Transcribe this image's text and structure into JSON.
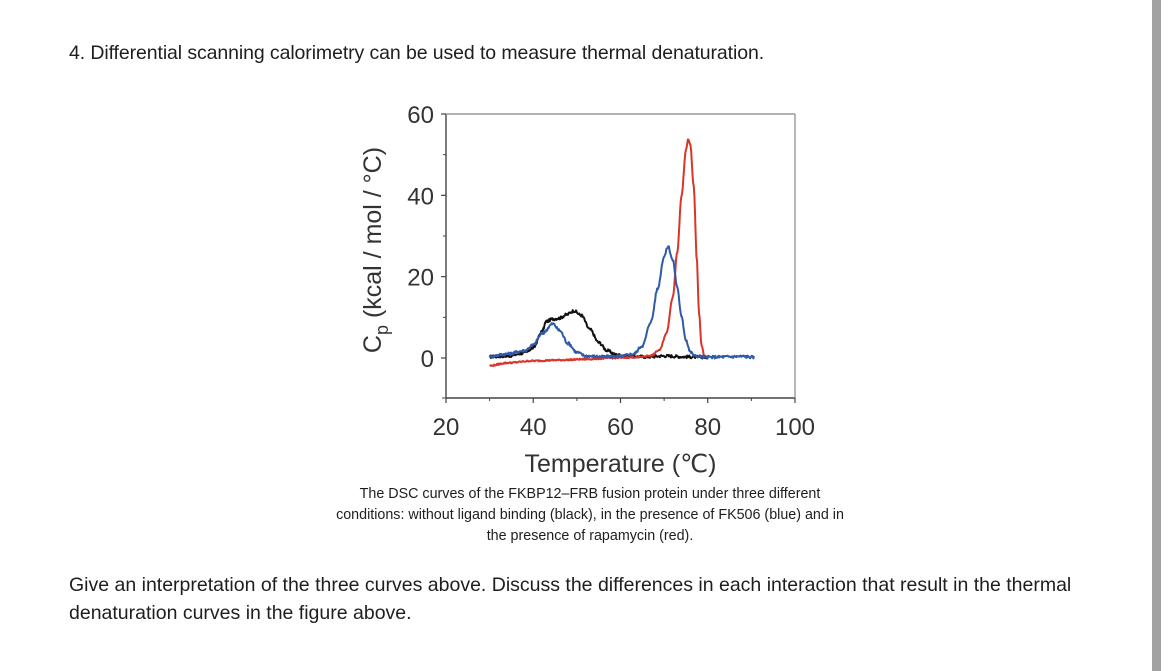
{
  "question": {
    "title": "4. Differential scanning calorimetry can be used to measure thermal denaturation.",
    "caption_lines": [
      "The DSC curves of the FKBP12–FRB fusion protein under three different",
      "conditions: without ligand binding (black), in the presence of FK506 (blue) and in",
      "the presence of rapamycin (red)."
    ],
    "prompt": "Give an interpretation of the three curves above. Discuss the differences in each interaction that result in the thermal denaturation curves in the figure above."
  },
  "chart_data": {
    "type": "line",
    "title": "",
    "xlabel": "Temperature (℃)",
    "ylabel_main": "C",
    "ylabel_sub": "p",
    "ylabel_rest": " (kcal / mol / °C)",
    "xlim": [
      20,
      100
    ],
    "ylim": [
      -10,
      60
    ],
    "x_ticks": [
      20,
      40,
      60,
      80,
      100
    ],
    "x_minor_ticks": [
      30,
      50,
      70,
      90
    ],
    "y_ticks": [
      0,
      20,
      40,
      60
    ],
    "y_minor_ticks": [
      10,
      30,
      50
    ],
    "grid": false,
    "legend": "none (colors described in caption)",
    "series": [
      {
        "name": "without ligand binding",
        "color": "#111111",
        "x_range": [
          30,
          70
        ],
        "baseline": [
          [
            30,
            0.3
          ],
          [
            40,
            1.0
          ],
          [
            70,
            0.2
          ]
        ],
        "peaks": [
          {
            "center": 44.3,
            "height": 8.6,
            "width": 2.6
          },
          {
            "center": 49.6,
            "height": 10.4,
            "width": 3.4
          }
        ],
        "points": [
          [
            30,
            0.3
          ],
          [
            34,
            0.5
          ],
          [
            38,
            1.2
          ],
          [
            40,
            2.5
          ],
          [
            42,
            6.5
          ],
          [
            43,
            9.0
          ],
          [
            44.5,
            9.6
          ],
          [
            46,
            9.8
          ],
          [
            47.5,
            10.6
          ],
          [
            49.3,
            11.6
          ],
          [
            51,
            10.5
          ],
          [
            53,
            7.0
          ],
          [
            55,
            3.8
          ],
          [
            57,
            1.8
          ],
          [
            59,
            0.8
          ],
          [
            62,
            0.4
          ],
          [
            66,
            0.3
          ],
          [
            70,
            0.5
          ],
          [
            75,
            0.3
          ],
          [
            80,
            0.2
          ]
        ]
      },
      {
        "name": "FK506 (blue)",
        "color": "#2e5aa8",
        "points": [
          [
            30,
            0.4
          ],
          [
            34,
            1.0
          ],
          [
            38,
            1.8
          ],
          [
            40,
            3.2
          ],
          [
            42,
            6.0
          ],
          [
            44.5,
            8.4
          ],
          [
            46,
            6.8
          ],
          [
            48,
            3.6
          ],
          [
            50,
            1.4
          ],
          [
            52,
            0.5
          ],
          [
            56,
            0.3
          ],
          [
            60,
            0.4
          ],
          [
            63,
            1.0
          ],
          [
            65,
            3.0
          ],
          [
            67,
            9.0
          ],
          [
            68.5,
            17.0
          ],
          [
            70,
            25.0
          ],
          [
            70.9,
            27.5
          ],
          [
            72,
            24.0
          ],
          [
            73,
            17.5
          ],
          [
            74,
            10.0
          ],
          [
            75,
            4.5
          ],
          [
            76,
            1.5
          ],
          [
            77,
            0.5
          ],
          [
            80,
            0.2
          ],
          [
            84,
            0.3
          ],
          [
            88,
            0.4
          ],
          [
            90.6,
            0.2
          ]
        ]
      },
      {
        "name": "rapamycin (red)",
        "color": "#d9352a",
        "points": [
          [
            30,
            -1.9
          ],
          [
            34,
            -1.2
          ],
          [
            40,
            -0.7
          ],
          [
            46,
            -0.5
          ],
          [
            52,
            -0.3
          ],
          [
            58,
            0.0
          ],
          [
            64,
            0.2
          ],
          [
            67,
            0.6
          ],
          [
            69,
            2.0
          ],
          [
            70.5,
            6.0
          ],
          [
            72,
            15.0
          ],
          [
            73,
            26.0
          ],
          [
            74,
            40.0
          ],
          [
            75,
            51.0
          ],
          [
            75.5,
            53.7
          ],
          [
            76,
            52.5
          ],
          [
            76.8,
            42.0
          ],
          [
            77.5,
            24.0
          ],
          [
            78,
            11.0
          ],
          [
            78.6,
            3.0
          ],
          [
            79.2,
            0.5
          ],
          [
            80,
            0.2
          ]
        ]
      }
    ]
  },
  "scrollbar": {
    "color": "#a2a2a2"
  }
}
